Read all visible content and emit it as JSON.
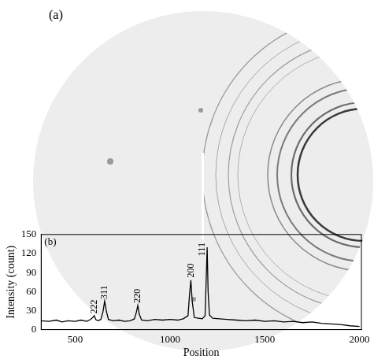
{
  "image_panel": {
    "label": "(a)"
  },
  "chart_data": {
    "type": "line",
    "title": "(b)",
    "x_label": "Position",
    "y_label": "Intensity (count)",
    "x": [
      320,
      360,
      400,
      430,
      460,
      500,
      530,
      560,
      580,
      592,
      600,
      608,
      620,
      635,
      646,
      655,
      664,
      675,
      700,
      730,
      760,
      790,
      812,
      822,
      830,
      838,
      850,
      880,
      920,
      960,
      1000,
      1040,
      1070,
      1095,
      1103,
      1110,
      1117,
      1128,
      1150,
      1170,
      1185,
      1190,
      1196,
      1201,
      1208,
      1225,
      1260,
      1300,
      1350,
      1400,
      1450,
      1500,
      1550,
      1600,
      1650,
      1700,
      1750,
      1800,
      1850,
      1900,
      1950,
      2000
    ],
    "values": [
      14,
      13,
      15,
      12,
      14,
      13,
      15,
      13,
      16,
      19,
      22,
      16,
      14,
      16,
      28,
      45,
      29,
      16,
      14,
      15,
      13,
      14,
      17,
      27,
      38,
      24,
      15,
      14,
      16,
      15,
      16,
      15,
      17,
      22,
      55,
      78,
      45,
      19,
      18,
      17,
      22,
      70,
      130,
      60,
      23,
      18,
      17,
      16,
      15,
      14,
      15,
      13,
      14,
      12,
      13,
      11,
      12,
      10,
      9,
      8,
      6,
      5
    ],
    "color": "#000000",
    "xlim": [
      320,
      2010
    ],
    "xticks": [
      500,
      1000,
      1500,
      2000
    ],
    "ylim": [
      0,
      150
    ],
    "yticks": [
      0,
      30,
      60,
      90,
      120,
      150
    ],
    "grid": false,
    "annotations": [
      {
        "text": "222",
        "x": 600,
        "y": 25
      },
      {
        "text": "311",
        "x": 655,
        "y": 48
      },
      {
        "text": "220",
        "x": 830,
        "y": 42
      },
      {
        "text": "200",
        "x": 1110,
        "y": 82
      },
      {
        "text": "111",
        "x": 1172,
        "y": 116
      }
    ]
  }
}
